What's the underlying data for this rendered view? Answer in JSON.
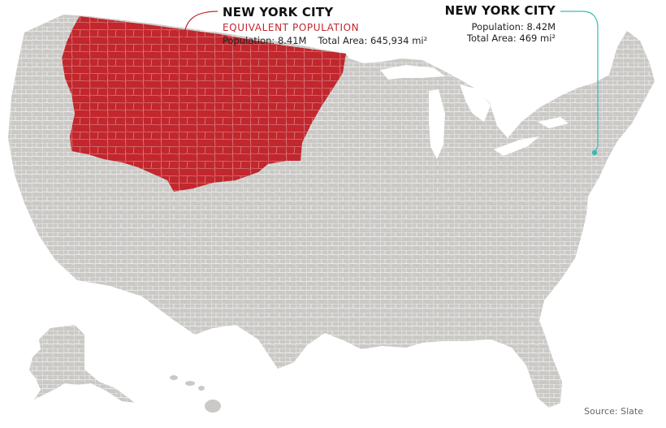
{
  "map": {
    "land_color": "#cbc9c6",
    "highlight_color": "#c1272d",
    "county_line_color": "#ffffff",
    "leader_left_color": "#c1272d",
    "leader_right_color": "#3bb8b8"
  },
  "left_callout": {
    "title": "NEW YORK CITY",
    "subtitle": "EQUIVALENT POPULATION",
    "population": "Population: 8.41M",
    "area": "Total Area: 645,934 mi²"
  },
  "right_callout": {
    "title": "NEW YORK CITY",
    "population": "Population: 8.42M",
    "area": "Total Area: 469 mi²"
  },
  "source": "Source: Slate"
}
